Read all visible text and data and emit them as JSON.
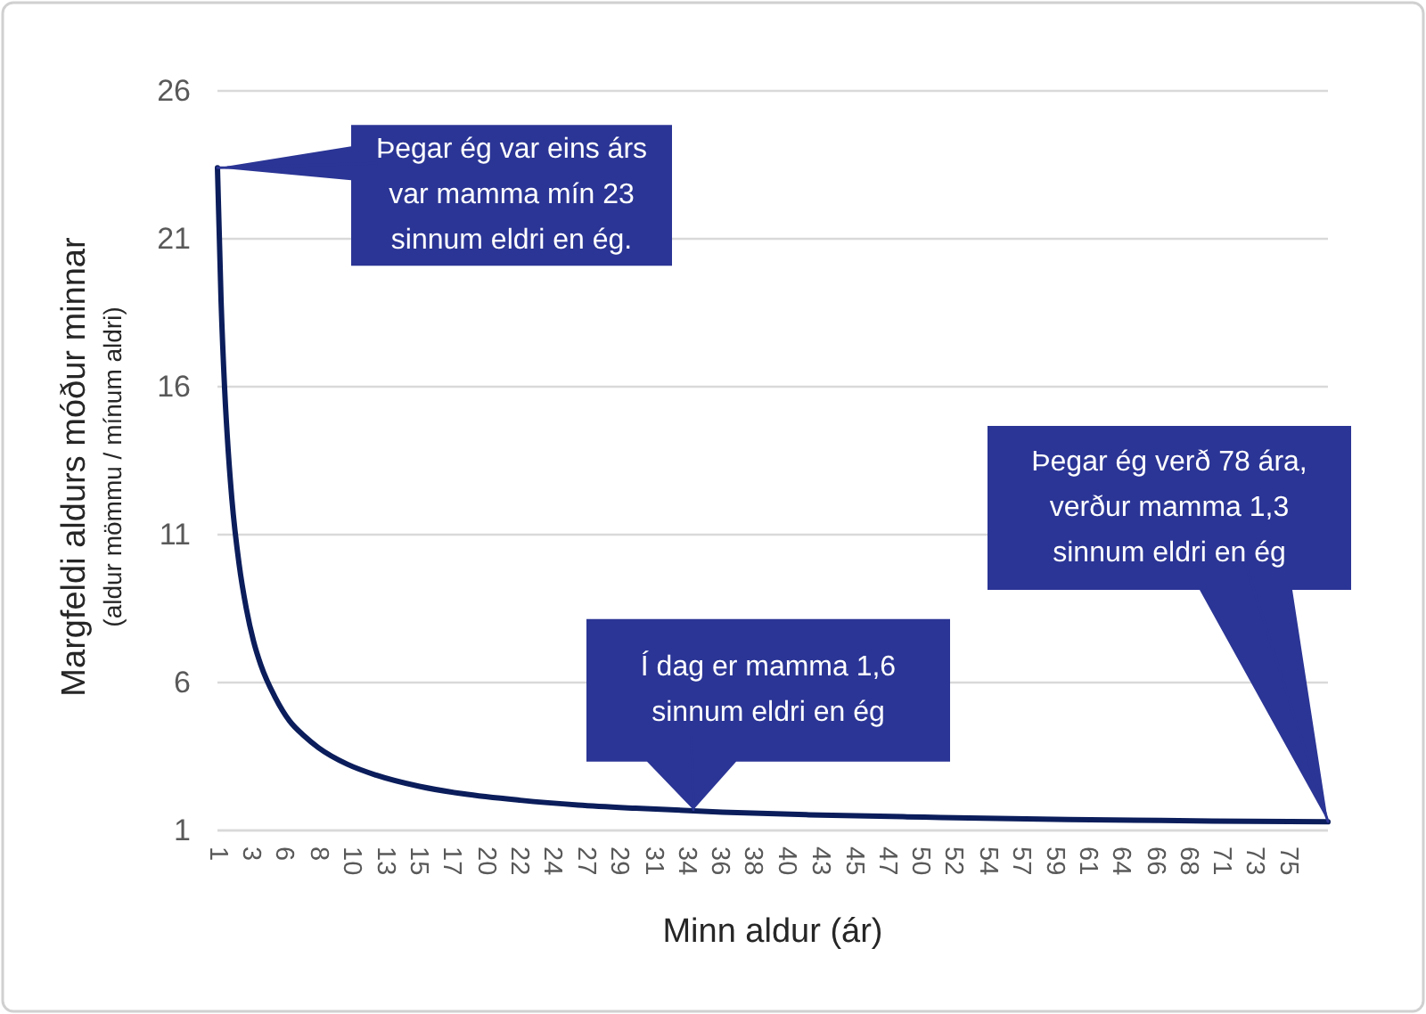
{
  "chart_data": {
    "type": "line",
    "xlabel": "Minn aldur (ár)",
    "ylabel": "Margfeldi aldurs móður minnar\n(aldur mömmu / mínum aldri)",
    "x": [
      1,
      1.25,
      1.5,
      1.75,
      2,
      2.5,
      3,
      3.5,
      4,
      5,
      6,
      7,
      8,
      10,
      12,
      15,
      18,
      22,
      26,
      30,
      36,
      42,
      50,
      60,
      70,
      78
    ],
    "series": [
      {
        "color": "#0b1d5b",
        "values": [
          23.4,
          18.9,
          15.9,
          13.8,
          12.2,
          10.0,
          8.5,
          7.4,
          6.6,
          5.5,
          4.7,
          4.2,
          3.8,
          3.24,
          2.87,
          2.49,
          2.24,
          2.02,
          1.86,
          1.75,
          1.62,
          1.53,
          1.45,
          1.37,
          1.32,
          1.29
        ]
      }
    ],
    "xlim": [
      1,
      78
    ],
    "xticks": [
      1,
      {
        "value": 3.3,
        "label": "3"
      },
      {
        "value": 5.6,
        "label": "6"
      },
      {
        "value": 8.0,
        "label": "8"
      },
      {
        "value": 10.3,
        "label": "10"
      },
      {
        "value": 12.6,
        "label": "13"
      },
      {
        "value": 14.9,
        "label": "15"
      },
      {
        "value": 17.2,
        "label": "17"
      },
      {
        "value": 19.6,
        "label": "20"
      },
      {
        "value": 21.9,
        "label": "22"
      },
      {
        "value": 24.2,
        "label": "24"
      },
      {
        "value": 26.5,
        "label": "27"
      },
      {
        "value": 28.8,
        "label": "29"
      },
      {
        "value": 31.2,
        "label": "31"
      },
      {
        "value": 33.5,
        "label": "34"
      },
      {
        "value": 35.8,
        "label": "36"
      },
      {
        "value": 38.1,
        "label": "38"
      },
      {
        "value": 40.4,
        "label": "40"
      },
      {
        "value": 42.8,
        "label": "43"
      },
      {
        "value": 45.1,
        "label": "45"
      },
      {
        "value": 47.4,
        "label": "47"
      },
      {
        "value": 49.7,
        "label": "50"
      },
      {
        "value": 52.0,
        "label": "52"
      },
      {
        "value": 54.4,
        "label": "54"
      },
      {
        "value": 56.7,
        "label": "57"
      },
      {
        "value": 59.0,
        "label": "59"
      },
      {
        "value": 61.3,
        "label": "61"
      },
      {
        "value": 63.6,
        "label": "64"
      },
      {
        "value": 66.0,
        "label": "66"
      },
      {
        "value": 68.3,
        "label": "68"
      },
      {
        "value": 70.6,
        "label": "71"
      },
      {
        "value": 72.9,
        "label": "73"
      },
      {
        "value": 75.2,
        "label": "75"
      }
    ],
    "ylim": [
      1,
      26
    ],
    "yticks": [
      1,
      6,
      11,
      16,
      21,
      26
    ],
    "grid": "y",
    "annotations": [
      {
        "text": "Þegar ég var eins árs\nvar mamma mín 23\nsinnum eldri en ég.",
        "x": 1,
        "y": 23.4
      },
      {
        "text": "Í dag er mamma 1,6\nsinnum eldri en ég",
        "x": 34,
        "y": 1.7
      },
      {
        "text": "Þegar ég verð 78 ára,\nverður mamma 1,3\nsinnum eldri en ég",
        "x": 78,
        "y": 1.3
      }
    ]
  }
}
